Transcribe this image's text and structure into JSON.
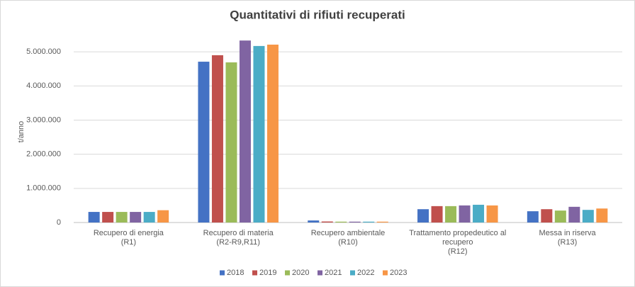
{
  "chart_data": {
    "type": "bar",
    "title": "Quantitativi di rifiuti recuperati",
    "y_label": "t/anno",
    "categories": [
      "Recupero di energia\n(R1)",
      "Recupero di materia\n(R2-R9,R11)",
      "Recupero ambientale\n(R10)",
      "Trattamento propedeutico al\nrecupero\n(R12)",
      "Messa in riserva\n(R13)"
    ],
    "series": [
      {
        "name": "2018",
        "color": "#4472c4",
        "values": [
          310000,
          4710000,
          60000,
          390000,
          330000
        ]
      },
      {
        "name": "2019",
        "color": "#c0504d",
        "values": [
          310000,
          4900000,
          30000,
          480000,
          390000
        ]
      },
      {
        "name": "2020",
        "color": "#9bbb59",
        "values": [
          310000,
          4690000,
          25000,
          480000,
          350000
        ]
      },
      {
        "name": "2021",
        "color": "#8064a2",
        "values": [
          310000,
          5330000,
          25000,
          500000,
          460000
        ]
      },
      {
        "name": "2022",
        "color": "#4bacc6",
        "values": [
          310000,
          5170000,
          25000,
          520000,
          370000
        ]
      },
      {
        "name": "2023",
        "color": "#f79646",
        "values": [
          360000,
          5210000,
          25000,
          500000,
          410000
        ]
      }
    ],
    "ylim": [
      0,
      5500000
    ],
    "yticks": [
      0,
      {
        "value": 1000000,
        "label": "1.000.000"
      },
      {
        "value": 2000000,
        "label": "2.000.000"
      },
      {
        "value": 3000000,
        "label": "3.000.000"
      },
      {
        "value": 4000000,
        "label": "4.000.000"
      },
      {
        "value": 5000000,
        "label": "5.000.000"
      }
    ],
    "grid": true,
    "legend": "bottom"
  }
}
